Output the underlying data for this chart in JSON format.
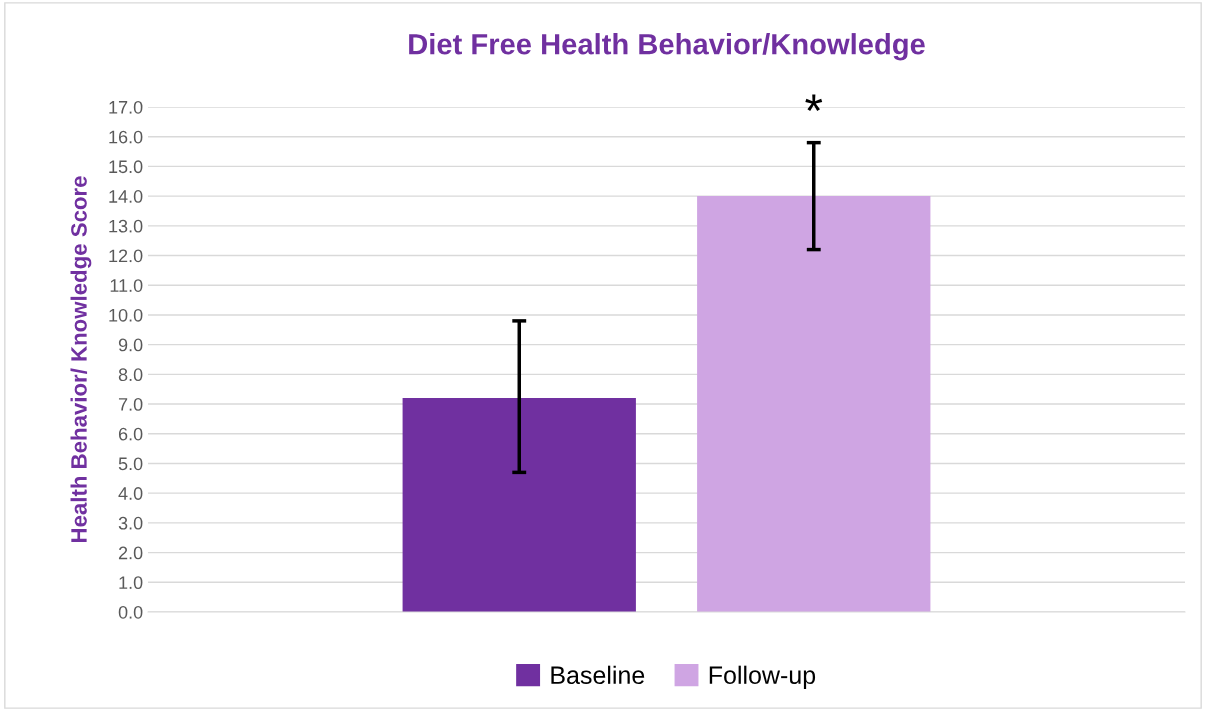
{
  "chart_data": {
    "type": "bar",
    "title": "Diet Free Health Behavior/Knowledge",
    "ylabel": "Health Behavior/ Knowledge Score",
    "categories": [
      null
    ],
    "series": [
      {
        "name": "Baseline",
        "color": "#7030a0",
        "values": [
          7.2
        ],
        "errors": [
          [
            4.7,
            9.8
          ]
        ]
      },
      {
        "name": "Follow-up",
        "color": "#cfa5e3",
        "values": [
          14.0
        ],
        "errors": [
          [
            12.2,
            15.8
          ]
        ]
      }
    ],
    "ylim": [
      0,
      17
    ],
    "yticks": [
      {
        "value": 0,
        "label": "0.0"
      },
      {
        "value": 1,
        "label": "1.0"
      },
      {
        "value": 2,
        "label": "2.0"
      },
      {
        "value": 3,
        "label": "3.0"
      },
      {
        "value": 4,
        "label": "4.0"
      },
      {
        "value": 5,
        "label": "5.0"
      },
      {
        "value": 6,
        "label": "6.0"
      },
      {
        "value": 7,
        "label": "7.0"
      },
      {
        "value": 8,
        "label": "8.0"
      },
      {
        "value": 9,
        "label": "9.0"
      },
      {
        "value": 10,
        "label": "10.0"
      },
      {
        "value": 11,
        "label": "11.0"
      },
      {
        "value": 12,
        "label": "12.0"
      },
      {
        "value": 13,
        "label": "13.0"
      },
      {
        "value": 14,
        "label": "14.0"
      },
      {
        "value": 15,
        "label": "15.0"
      },
      {
        "value": 16,
        "label": "16.0"
      },
      {
        "value": 17,
        "label": "17.0"
      }
    ],
    "annotations": [
      "*"
    ],
    "grid": "y",
    "legend": "bottom"
  }
}
